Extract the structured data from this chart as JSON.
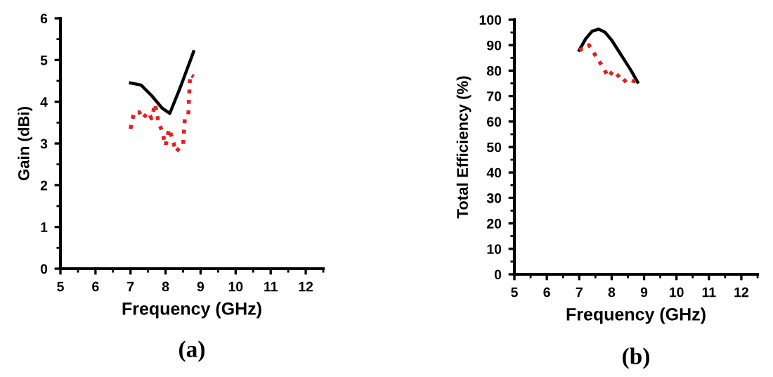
{
  "chart_data": [
    {
      "type": "line",
      "xlabel": "Frequency (GHz)",
      "ylabel": "Gain (dBi)",
      "annotations": [
        "(a)"
      ],
      "xlim": [
        5,
        12.5
      ],
      "xticks": [
        5,
        6,
        7,
        8,
        9,
        10,
        11,
        12
      ],
      "ylim": [
        0,
        6
      ],
      "yticks": [
        0,
        1,
        2,
        3,
        4,
        5,
        6
      ],
      "grid": false,
      "legend": false,
      "series": [
        {
          "color": "#000000",
          "line_style": "solid",
          "x": [
            7,
            7.3,
            7.6,
            7.9,
            8.12,
            8.4,
            8.6,
            8.8
          ],
          "values": [
            4.45,
            4.4,
            4.15,
            3.85,
            3.72,
            4.3,
            4.75,
            5.2
          ]
        },
        {
          "color": "#e02020",
          "line_style": "dotted",
          "x": [
            7,
            7.1,
            7.25,
            7.35,
            7.5,
            7.6,
            7.7,
            7.8,
            7.9,
            8.0,
            8.1,
            8.2,
            8.3,
            8.4,
            8.5,
            8.55,
            8.65,
            8.7,
            8.8
          ],
          "values": [
            3.35,
            3.75,
            3.75,
            3.6,
            3.75,
            3.6,
            3.95,
            3.5,
            3.3,
            2.95,
            3.35,
            3.1,
            2.8,
            2.9,
            2.95,
            3.6,
            3.7,
            4.65,
            4.6
          ]
        }
      ]
    },
    {
      "type": "line",
      "xlabel": "Frequency (GHz)",
      "ylabel": "Total Efficiency (%)",
      "annotations": [
        "(b)"
      ],
      "xlim": [
        5,
        12.5
      ],
      "xticks": [
        5,
        6,
        7,
        8,
        9,
        10,
        11,
        12
      ],
      "ylim": [
        0,
        100
      ],
      "yticks": [
        0,
        10,
        20,
        30,
        40,
        50,
        60,
        70,
        80,
        90,
        100
      ],
      "grid": false,
      "legend": false,
      "series": [
        {
          "color": "#000000",
          "line_style": "solid",
          "x": [
            7,
            7.2,
            7.4,
            7.6,
            7.8,
            8.0,
            8.2,
            8.4,
            8.6,
            8.8
          ],
          "values": [
            88,
            92.5,
            95.5,
            96.3,
            95,
            92,
            88,
            84,
            80,
            75.5
          ]
        },
        {
          "color": "#e02020",
          "line_style": "dotted",
          "x": [
            7,
            7.1,
            7.2,
            7.3,
            7.5,
            7.7,
            7.9,
            8.05,
            8.2,
            8.35,
            8.5,
            8.65,
            8.8
          ],
          "values": [
            88,
            88.5,
            88.5,
            90,
            86,
            82,
            77.5,
            80,
            78,
            75.5,
            77,
            76,
            75.5
          ]
        }
      ]
    }
  ]
}
